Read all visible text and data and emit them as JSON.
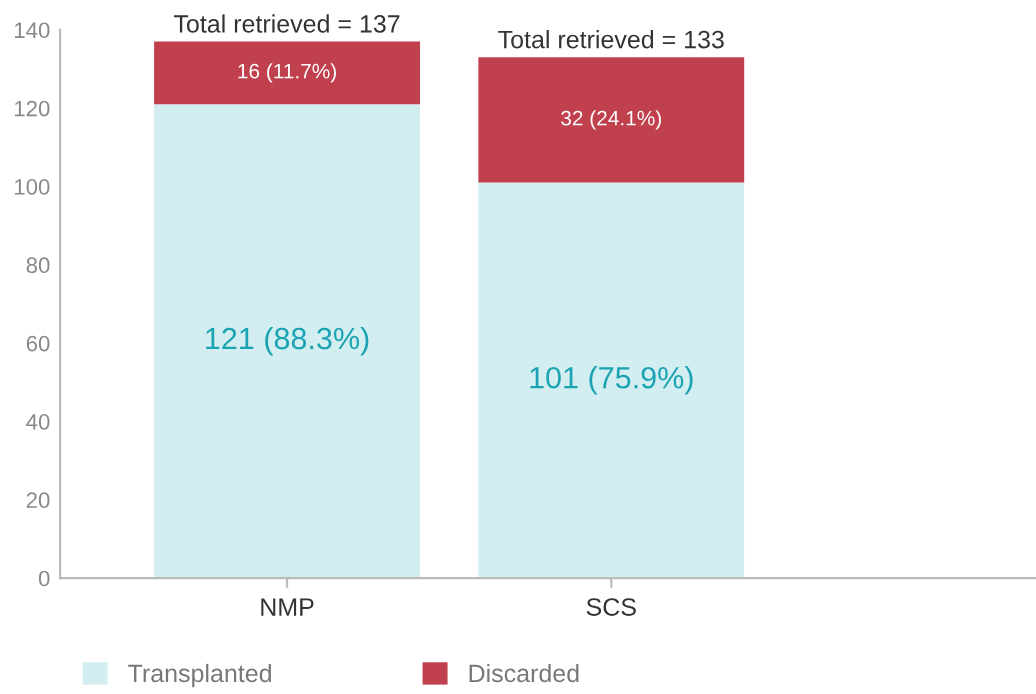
{
  "chart_data": {
    "type": "bar",
    "stacked": true,
    "categories": [
      "NMP",
      "SCS"
    ],
    "series": [
      {
        "name": "Transplanted",
        "color": "#d3eef0",
        "values": [
          121,
          101
        ],
        "value_labels": [
          "121 (88.3%)",
          "101 (75.9%)"
        ]
      },
      {
        "name": "Discarded",
        "color": "#c1404e",
        "values": [
          16,
          32
        ],
        "value_labels": [
          "16 (11.7%)",
          "32 (24.1%)"
        ]
      }
    ],
    "totals": [
      "Total retrieved = 137",
      "Total retrieved = 133"
    ],
    "ylim": [
      0,
      140
    ],
    "yticks": [
      0,
      20,
      40,
      60,
      80,
      100,
      120,
      140
    ],
    "grid": false,
    "legend": "bottom"
  }
}
